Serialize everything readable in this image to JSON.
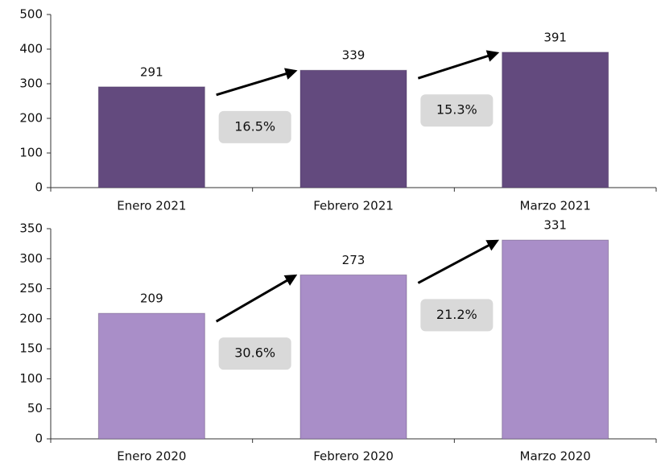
{
  "chart_data": [
    {
      "type": "bar",
      "categories": [
        "Enero 2021",
        "Febrero 2021",
        "Marzo 2021"
      ],
      "values": [
        291,
        339,
        391
      ],
      "color": "#634a7e",
      "ylim": [
        0,
        500
      ],
      "yticks": [
        0,
        100,
        200,
        300,
        400,
        500
      ],
      "annotations": [
        "16.5%",
        "15.3%"
      ]
    },
    {
      "type": "bar",
      "categories": [
        "Enero 2020",
        "Febrero 2020",
        "Marzo 2020"
      ],
      "values": [
        209,
        273,
        331
      ],
      "color": "#a98ec8",
      "ylim": [
        0,
        350
      ],
      "yticks": [
        0,
        50,
        100,
        150,
        200,
        250,
        300,
        350
      ],
      "annotations": [
        "30.6%",
        "21.2%"
      ]
    }
  ]
}
